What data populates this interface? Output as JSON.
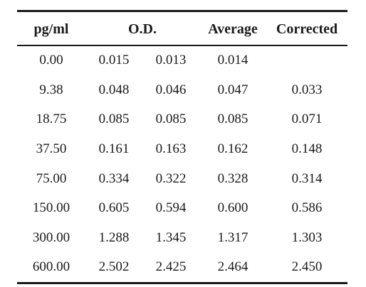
{
  "table": {
    "headers": {
      "concentration": "pg/ml",
      "od": "O.D.",
      "average": "Average",
      "corrected": "Corrected"
    },
    "rows": [
      {
        "conc": "0.00",
        "od1": "0.015",
        "od2": "0.013",
        "avg": "0.014",
        "corr": ""
      },
      {
        "conc": "9.38",
        "od1": "0.048",
        "od2": "0.046",
        "avg": "0.047",
        "corr": "0.033"
      },
      {
        "conc": "18.75",
        "od1": "0.085",
        "od2": "0.085",
        "avg": "0.085",
        "corr": "0.071"
      },
      {
        "conc": "37.50",
        "od1": "0.161",
        "od2": "0.163",
        "avg": "0.162",
        "corr": "0.148"
      },
      {
        "conc": "75.00",
        "od1": "0.334",
        "od2": "0.322",
        "avg": "0.328",
        "corr": "0.314"
      },
      {
        "conc": "150.00",
        "od1": "0.605",
        "od2": "0.594",
        "avg": "0.600",
        "corr": "0.586"
      },
      {
        "conc": "300.00",
        "od1": "1.288",
        "od2": "1.345",
        "avg": "1.317",
        "corr": "1.303"
      },
      {
        "conc": "600.00",
        "od1": "2.502",
        "od2": "2.425",
        "avg": "2.464",
        "corr": "2.450"
      }
    ]
  }
}
